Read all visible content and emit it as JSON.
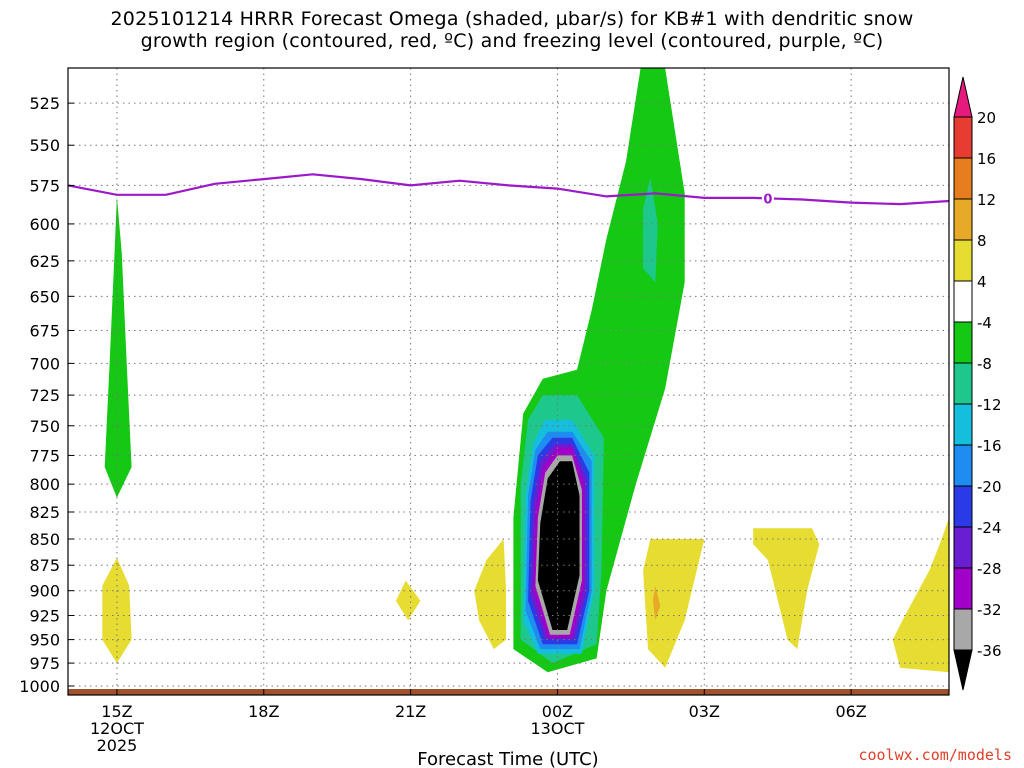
{
  "title": {
    "line1": "2025101214 HRRR Forecast Omega (shaded, µbar/s) for KB#1 with dendritic snow",
    "line2": "growth region (contoured, red, ºC) and freezing level (contoured, purple, ºC)"
  },
  "watermark": "coolwx.com/models",
  "chart_data": {
    "type": "time-height cross-section (filled contour)",
    "xlabel": "Forecast Time (UTC)",
    "ylabel": "",
    "x_ticks": [
      {
        "hours": 15,
        "label": "15Z",
        "date": "12OCT",
        "year": "2025"
      },
      {
        "hours": 18,
        "label": "18Z",
        "date": "",
        "year": ""
      },
      {
        "hours": 21,
        "label": "21Z",
        "date": "",
        "year": ""
      },
      {
        "hours": 24,
        "label": "00Z",
        "date": "13OCT",
        "year": ""
      },
      {
        "hours": 27,
        "label": "03Z",
        "date": "",
        "year": ""
      },
      {
        "hours": 30,
        "label": "06Z",
        "date": "",
        "year": ""
      }
    ],
    "x_range_hours": [
      14,
      32
    ],
    "y_ticks": [
      525,
      550,
      575,
      600,
      625,
      650,
      675,
      700,
      725,
      750,
      775,
      800,
      825,
      850,
      875,
      900,
      925,
      950,
      975,
      1000
    ],
    "y_range_mb": [
      1010,
      505
    ],
    "y_scale": "log-pressure",
    "grid": true,
    "colorbar": {
      "levels": [
        -36,
        -32,
        -28,
        -24,
        -20,
        -16,
        -12,
        -8,
        -4,
        4,
        8,
        12,
        16,
        20
      ],
      "level_labels": [
        "-36",
        "-32",
        "-28",
        "-24",
        "-20",
        "-16",
        "-12",
        "-8",
        "-4",
        "4",
        "8",
        "12",
        "16",
        "20"
      ],
      "colors": [
        "#000000",
        "#a8a8a8",
        "#a000c8",
        "#6a1ed2",
        "#2a3ae6",
        "#1e8cf0",
        "#14bedc",
        "#1ec88c",
        "#14c814",
        "#ffffff",
        "#e6dc32",
        "#e6aa28",
        "#e67d1e",
        "#e63c32",
        "#e6197d"
      ],
      "extends": "both"
    },
    "freezing_level": {
      "label": "0",
      "color": "#9b19c8",
      "hours": [
        14,
        15,
        16,
        17,
        18,
        19,
        20,
        21,
        22,
        23,
        24,
        25,
        26,
        27,
        28,
        29,
        30,
        31,
        32
      ],
      "pressure_mb": [
        575,
        581,
        581,
        574,
        571,
        568,
        571,
        575,
        572,
        575,
        577,
        582,
        580,
        583,
        583,
        584,
        586,
        587,
        585
      ]
    },
    "surface_color": "#a0522d",
    "omega_regions": [
      {
        "level": -8,
        "color": "#14c814",
        "outline": [
          [
            15.0,
            582
          ],
          [
            14.95,
            620
          ],
          [
            14.85,
            700
          ],
          [
            14.75,
            785
          ],
          [
            15.0,
            812
          ],
          [
            15.3,
            785
          ],
          [
            15.2,
            700
          ],
          [
            15.1,
            620
          ]
        ]
      },
      {
        "level": -8,
        "color": "#14c814",
        "outline": [
          [
            25.7,
            505
          ],
          [
            26.2,
            505
          ],
          [
            26.6,
            580
          ],
          [
            26.6,
            640
          ],
          [
            26.2,
            720
          ],
          [
            25.6,
            800
          ],
          [
            25.0,
            900
          ],
          [
            24.8,
            970
          ],
          [
            23.8,
            985
          ],
          [
            23.1,
            960
          ],
          [
            23.1,
            830
          ],
          [
            23.3,
            740
          ],
          [
            23.7,
            712
          ],
          [
            24.4,
            705
          ],
          [
            24.7,
            660
          ],
          [
            25.0,
            610
          ],
          [
            25.4,
            560
          ]
        ]
      },
      {
        "level": -12,
        "color": "#1ec88c",
        "outline": [
          [
            25.9,
            570
          ],
          [
            26.05,
            600
          ],
          [
            26.0,
            640
          ],
          [
            25.75,
            630
          ],
          [
            25.75,
            590
          ]
        ]
      },
      {
        "level": -12,
        "color": "#1ec88c",
        "outline": [
          [
            23.4,
            745
          ],
          [
            23.7,
            725
          ],
          [
            24.4,
            725
          ],
          [
            24.95,
            760
          ],
          [
            24.9,
            880
          ],
          [
            24.8,
            955
          ],
          [
            23.9,
            975
          ],
          [
            23.25,
            950
          ],
          [
            23.25,
            800
          ]
        ]
      },
      {
        "level": -16,
        "color": "#14bedc",
        "outline": [
          [
            23.5,
            765
          ],
          [
            23.75,
            745
          ],
          [
            24.3,
            745
          ],
          [
            24.75,
            775
          ],
          [
            24.75,
            900
          ],
          [
            24.5,
            965
          ],
          [
            23.6,
            965
          ],
          [
            23.3,
            930
          ],
          [
            23.35,
            810
          ]
        ]
      },
      {
        "level": -20,
        "color": "#1e8cf0",
        "outline": [
          [
            23.55,
            770
          ],
          [
            23.8,
            755
          ],
          [
            24.3,
            755
          ],
          [
            24.7,
            780
          ],
          [
            24.7,
            900
          ],
          [
            24.45,
            960
          ],
          [
            23.65,
            960
          ],
          [
            23.35,
            920
          ],
          [
            23.4,
            810
          ]
        ]
      },
      {
        "level": -24,
        "color": "#2a3ae6",
        "outline": [
          [
            23.6,
            775
          ],
          [
            23.9,
            760
          ],
          [
            24.3,
            760
          ],
          [
            24.65,
            790
          ],
          [
            24.65,
            900
          ],
          [
            24.4,
            955
          ],
          [
            23.7,
            955
          ],
          [
            23.4,
            910
          ],
          [
            23.45,
            815
          ]
        ]
      },
      {
        "level": -28,
        "color": "#6a1ed2",
        "outline": [
          [
            23.65,
            780
          ],
          [
            23.95,
            765
          ],
          [
            24.3,
            765
          ],
          [
            24.6,
            795
          ],
          [
            24.6,
            900
          ],
          [
            24.35,
            950
          ],
          [
            23.75,
            950
          ],
          [
            23.45,
            905
          ],
          [
            23.5,
            820
          ]
        ]
      },
      {
        "level": -32,
        "color": "#a000c8",
        "outline": [
          [
            23.7,
            785
          ],
          [
            24.0,
            768
          ],
          [
            24.3,
            768
          ],
          [
            24.55,
            800
          ],
          [
            24.55,
            895
          ],
          [
            24.3,
            948
          ],
          [
            23.8,
            948
          ],
          [
            23.5,
            900
          ],
          [
            23.55,
            825
          ]
        ]
      },
      {
        "level": -36,
        "color": "#a8a8a8",
        "outline": [
          [
            23.75,
            790
          ],
          [
            24.0,
            775
          ],
          [
            24.3,
            775
          ],
          [
            24.5,
            805
          ],
          [
            24.5,
            890
          ],
          [
            24.25,
            945
          ],
          [
            23.85,
            945
          ],
          [
            23.55,
            895
          ],
          [
            23.6,
            830
          ]
        ]
      },
      {
        "level": -40,
        "color": "#000000",
        "outline": [
          [
            23.8,
            795
          ],
          [
            24.05,
            780
          ],
          [
            24.3,
            780
          ],
          [
            24.45,
            810
          ],
          [
            24.45,
            885
          ],
          [
            24.2,
            940
          ],
          [
            23.9,
            940
          ],
          [
            23.6,
            890
          ],
          [
            23.65,
            835
          ]
        ]
      },
      {
        "level": 4,
        "color": "#e6dc32",
        "outline": [
          [
            15.0,
            868
          ],
          [
            15.25,
            895
          ],
          [
            15.3,
            950
          ],
          [
            15.0,
            975
          ],
          [
            14.7,
            950
          ],
          [
            14.7,
            895
          ]
        ]
      },
      {
        "level": 4,
        "color": "#e6dc32",
        "outline": [
          [
            20.9,
            890
          ],
          [
            21.2,
            910
          ],
          [
            20.95,
            930
          ],
          [
            20.7,
            910
          ]
        ]
      },
      {
        "level": 4,
        "color": "#e6dc32",
        "outline": [
          [
            22.9,
            850
          ],
          [
            22.55,
            870
          ],
          [
            22.3,
            900
          ],
          [
            22.4,
            930
          ],
          [
            22.7,
            960
          ],
          [
            22.95,
            950
          ],
          [
            22.95,
            900
          ]
        ]
      },
      {
        "level": 4,
        "color": "#e6dc32",
        "outline": [
          [
            26.9,
            850
          ],
          [
            27.0,
            850
          ],
          [
            26.6,
            930
          ],
          [
            26.2,
            980
          ],
          [
            25.85,
            960
          ],
          [
            25.75,
            880
          ],
          [
            25.9,
            850
          ]
        ]
      },
      {
        "level": 8,
        "color": "#e6aa28",
        "outline": [
          [
            26.0,
            895
          ],
          [
            26.1,
            915
          ],
          [
            26.0,
            930
          ],
          [
            25.95,
            910
          ]
        ]
      },
      {
        "level": 4,
        "color": "#e6dc32",
        "outline": [
          [
            28.0,
            840
          ],
          [
            29.2,
            840
          ],
          [
            29.35,
            855
          ],
          [
            29.1,
            900
          ],
          [
            28.9,
            960
          ],
          [
            28.7,
            950
          ],
          [
            28.3,
            870
          ],
          [
            28.0,
            855
          ]
        ]
      },
      {
        "level": 4,
        "color": "#e6dc32",
        "outline": [
          [
            32.0,
            830
          ],
          [
            32.0,
            985
          ],
          [
            31.0,
            980
          ],
          [
            30.85,
            950
          ],
          [
            31.1,
            925
          ],
          [
            31.6,
            880
          ],
          [
            31.85,
            850
          ]
        ]
      }
    ]
  }
}
